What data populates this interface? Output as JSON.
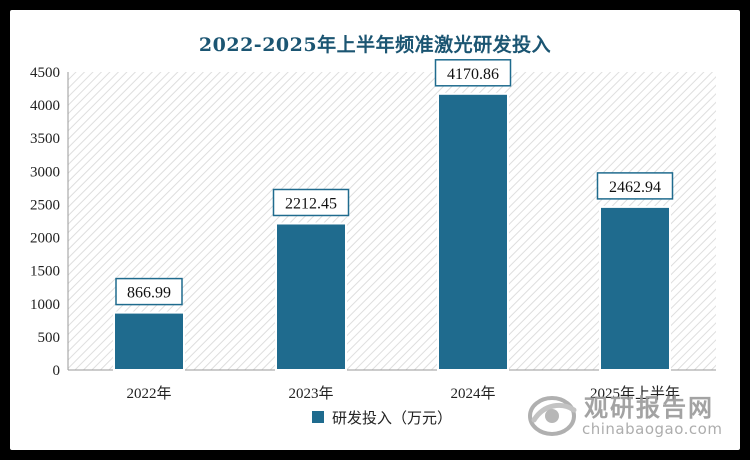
{
  "chart_data": {
    "type": "bar",
    "title": "2022-2025年上半年频准激光研发投入",
    "categories": [
      "2022年",
      "2023年",
      "2024年",
      "2025年上半年"
    ],
    "series": [
      {
        "name": "研发投入（万元）",
        "values": [
          866.99,
          2212.45,
          4170.86,
          2462.94
        ]
      }
    ],
    "data_labels": [
      "866.99",
      "2212.45",
      "4170.86",
      "2462.94"
    ],
    "ylim": [
      0,
      4500
    ],
    "yticks": [
      0,
      500,
      1000,
      1500,
      2000,
      2500,
      3000,
      3500,
      4000,
      4500
    ],
    "ytick_labels": [
      "0",
      "500",
      "1000",
      "1500",
      "2000",
      "2500",
      "3000",
      "3500",
      "4000",
      "4500"
    ],
    "xlabel": "",
    "ylabel": "",
    "grid": false,
    "plot_background": "diagonal-hatch",
    "legend_position": "bottom-center",
    "colors": {
      "bar": "#1f6b8e",
      "bar_outline": "#ffffff",
      "title": "#1b5572",
      "frame": "#000000",
      "hatch": "#dcdcdc"
    }
  },
  "watermark": {
    "cn": "观研报告网",
    "en": "chinabaogao.com",
    "icon": "globe-swoosh-logo-icon"
  }
}
